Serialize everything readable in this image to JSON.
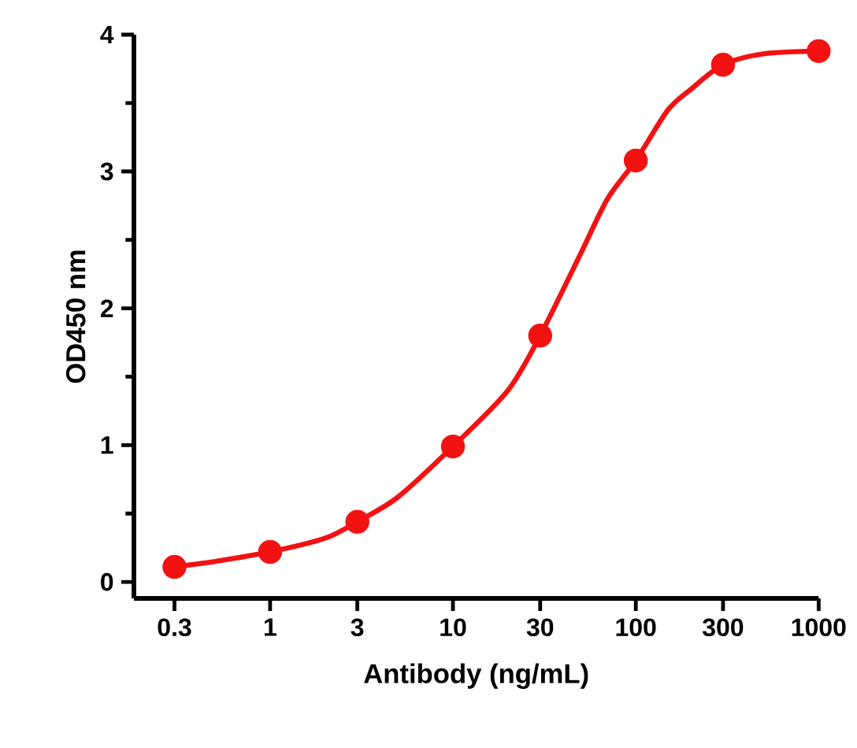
{
  "chart_data": {
    "type": "scatter",
    "xlabel": "Antibody (ng/mL)",
    "ylabel": "OD450 nm",
    "log": "x",
    "xlim": [
      0.18,
      1000
    ],
    "ylim": [
      -0.12,
      4
    ],
    "xticks": [
      0.3,
      1,
      3,
      10,
      30,
      100,
      300,
      1000
    ],
    "yticks": [
      0,
      1,
      2,
      3,
      4
    ],
    "series": [
      {
        "type": "line",
        "color": "#f21212",
        "marker": "none",
        "x": [
          0.3,
          0.5,
          1,
          2,
          3,
          5,
          10,
          20,
          30,
          50,
          70,
          100,
          150,
          200,
          300,
          500,
          1000
        ],
        "values": [
          0.11,
          0.15,
          0.22,
          0.32,
          0.44,
          0.62,
          0.99,
          1.4,
          1.8,
          2.4,
          2.8,
          3.08,
          3.45,
          3.6,
          3.78,
          3.86,
          3.88
        ]
      },
      {
        "color": "#f21212",
        "marker": "circle",
        "x": [
          0.3,
          1,
          3,
          10,
          30,
          100,
          300,
          1000
        ],
        "values": [
          0.11,
          0.22,
          0.44,
          0.99,
          1.8,
          3.08,
          3.78,
          3.88
        ]
      }
    ]
  }
}
